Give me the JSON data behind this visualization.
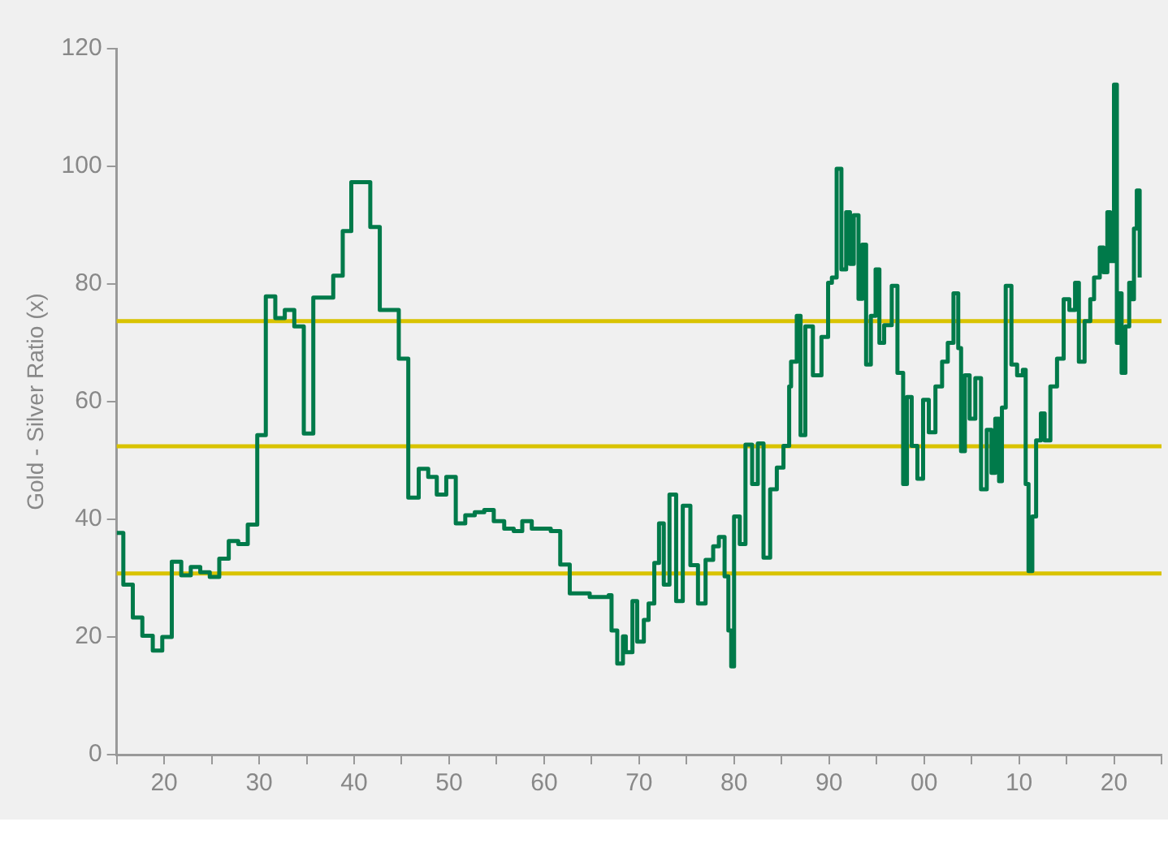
{
  "chart_data": {
    "type": "step",
    "ylabel": "Gold - Silver Ratio (x)",
    "xlim": [
      1915,
      2025
    ],
    "xticks": [
      {
        "value": 1915,
        "label": null
      },
      {
        "value": 1920,
        "label": "20"
      },
      {
        "value": 1925,
        "label": null
      },
      {
        "value": 1930,
        "label": "30"
      },
      {
        "value": 1935,
        "label": null
      },
      {
        "value": 1940,
        "label": "40"
      },
      {
        "value": 1945,
        "label": null
      },
      {
        "value": 1950,
        "label": "50"
      },
      {
        "value": 1955,
        "label": null
      },
      {
        "value": 1960,
        "label": "60"
      },
      {
        "value": 1965,
        "label": null
      },
      {
        "value": 1970,
        "label": "70"
      },
      {
        "value": 1975,
        "label": null
      },
      {
        "value": 1980,
        "label": "80"
      },
      {
        "value": 1985,
        "label": null
      },
      {
        "value": 1990,
        "label": "90"
      },
      {
        "value": 1995,
        "label": null
      },
      {
        "value": 2000,
        "label": "00"
      },
      {
        "value": 2005,
        "label": null
      },
      {
        "value": 2010,
        "label": "10"
      },
      {
        "value": 2015,
        "label": null
      },
      {
        "value": 2020,
        "label": "20"
      },
      {
        "value": 2025,
        "label": null
      }
    ],
    "ylim": [
      0,
      120
    ],
    "yticks": [
      0,
      20,
      40,
      60,
      80,
      100,
      120
    ],
    "grid": false,
    "legend": false,
    "marker": "none",
    "line_style": "solid",
    "ref_lines": [
      {
        "axis": "y",
        "value": 73.7,
        "color": "#d9c300"
      },
      {
        "axis": "y",
        "value": 52.4,
        "color": "#d9c300"
      },
      {
        "axis": "y",
        "value": 30.8,
        "color": "#d9c300"
      }
    ],
    "series": [
      {
        "color": "#007a4a",
        "x": [
          1915,
          1915.7,
          1916.7,
          1917.7,
          1918.8,
          1919.8,
          1920.8,
          1921.8,
          1922.8,
          1923.8,
          1924.8,
          1925.8,
          1926.8,
          1927.8,
          1928.8,
          1929.8,
          1930.7,
          1931.7,
          1932.7,
          1933.7,
          1934.7,
          1935.7,
          1937.8,
          1938.8,
          1939.7,
          1941.7,
          1942.7,
          1944.7,
          1945.7,
          1946.8,
          1947.8,
          1948.7,
          1949.7,
          1950.7,
          1951.7,
          1952.7,
          1953.7,
          1954.7,
          1955.8,
          1956.8,
          1957.7,
          1958.7,
          1960.7,
          1961.7,
          1962.7,
          1964.8,
          1966.8,
          1967.1,
          1967.7,
          1968.3,
          1968.6,
          1969.3,
          1969.8,
          1970.5,
          1971,
          1971.6,
          1972.1,
          1972.6,
          1973.2,
          1973.9,
          1974.6,
          1975.4,
          1976.2,
          1977,
          1977.8,
          1978.4,
          1979,
          1979.4,
          1979.7,
          1980,
          1980.6,
          1981.2,
          1981.9,
          1982.5,
          1983.1,
          1983.8,
          1984.5,
          1985.2,
          1985.8,
          1986,
          1986.6,
          1987,
          1987.5,
          1988.3,
          1989.2,
          1989.9,
          1990.3,
          1990.8,
          1991.3,
          1991.8,
          1992.2,
          1992.6,
          1993.1,
          1993.5,
          1993.9,
          1994.4,
          1994.9,
          1995.3,
          1995.8,
          1996.6,
          1997.2,
          1997.8,
          1998.2,
          1998.7,
          1999.3,
          1999.9,
          2000.5,
          2001.2,
          2001.9,
          2002.5,
          2003.1,
          2003.6,
          2003.9,
          2004.3,
          2004.8,
          2005.4,
          2006,
          2006.6,
          2007.1,
          2007.5,
          2007.9,
          2008.2,
          2008.6,
          2009.2,
          2009.8,
          2010.4,
          2010.7,
          2011,
          2011.4,
          2011.8,
          2012.3,
          2012.7,
          2013.3,
          2014,
          2014.7,
          2015.3,
          2015.9,
          2016.3,
          2016.9,
          2017.5,
          2017.9,
          2018.5,
          2018.9,
          2019.3,
          2019.6,
          2020,
          2020.3,
          2020.5,
          2020.8,
          2021.2,
          2021.6,
          2021.9,
          2022.1,
          2022.4,
          2022.7
        ],
        "values": [
          37.7,
          28.9,
          23.3,
          20.2,
          17.7,
          20,
          32.8,
          30.5,
          31.9,
          31,
          30.2,
          33.3,
          36.3,
          35.8,
          39.1,
          54.3,
          77.9,
          74.2,
          75.6,
          72.8,
          54.6,
          77.7,
          81.4,
          89,
          97.3,
          89.7,
          75.6,
          67.3,
          43.7,
          48.6,
          47.2,
          44.2,
          47.2,
          39.3,
          40.7,
          41.2,
          41.6,
          39.7,
          38.4,
          38,
          39.7,
          38.4,
          38,
          32.3,
          27.4,
          26.8,
          27.1,
          21.1,
          15.5,
          20.1,
          17.4,
          26.1,
          19.2,
          22.9,
          25.7,
          32.6,
          39.3,
          28.9,
          44.2,
          26.1,
          42.3,
          32.2,
          25.7,
          33.1,
          35.4,
          37,
          30.3,
          21.1,
          15,
          40.5,
          35.8,
          52.7,
          46,
          52.9,
          33.5,
          45.1,
          48.8,
          52.5,
          62.6,
          66.8,
          74.6,
          54.3,
          72.8,
          64.5,
          71,
          80.2,
          81.1,
          99.6,
          82.5,
          92.2,
          83.4,
          91.7,
          77.5,
          86.7,
          66.3,
          74.6,
          82.5,
          70,
          73,
          79.7,
          64.9,
          46,
          60.8,
          52.5,
          46.9,
          60.3,
          54.8,
          62.6,
          66.8,
          70,
          78.4,
          69.1,
          51.6,
          64.5,
          57.1,
          64,
          45.1,
          55.2,
          47.9,
          57.1,
          46.5,
          59,
          79.7,
          66.3,
          64.5,
          65.4,
          46,
          31.2,
          40.5,
          53.4,
          58,
          53.4,
          62.6,
          67.3,
          77.4,
          75.6,
          80.2,
          66.8,
          73.7,
          77.4,
          81.1,
          86.2,
          82,
          92.2,
          83.9,
          113.9,
          70,
          78.4,
          64.9,
          72.8,
          80.2,
          77.4,
          89.4,
          95.9,
          81.1
        ]
      }
    ]
  }
}
